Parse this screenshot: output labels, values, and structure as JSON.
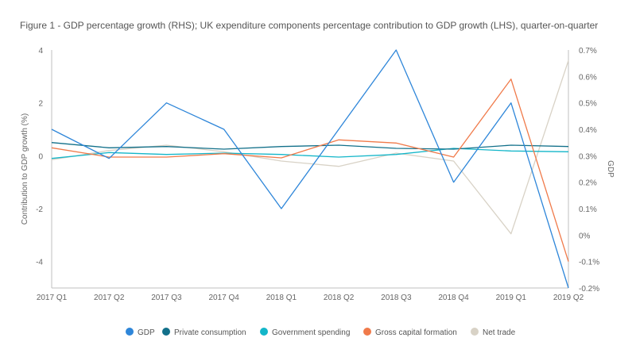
{
  "chart_data": {
    "type": "line",
    "title": "Figure 1 - GDP percentage growth (RHS); UK expenditure components percentage contribution to GDP growth (LHS), quarter-on-quarter",
    "xlabel": "",
    "ylabel_left": "Contribution to GDP growth (%)",
    "ylabel_right": "GDP",
    "categories": [
      "2017 Q1",
      "2017 Q2",
      "2017 Q3",
      "2017 Q4",
      "2018 Q1",
      "2018 Q2",
      "2018 Q3",
      "2018 Q4",
      "2019 Q1",
      "2019 Q2"
    ],
    "ylim_left": [
      -5,
      4
    ],
    "yticks_left": [
      "4",
      "2",
      "0",
      "-2",
      "-4"
    ],
    "ylim_right": [
      -0.2,
      0.7
    ],
    "yticks_right": [
      "0.7%",
      "0.6%",
      "0.5%",
      "0.4%",
      "0.3%",
      "0.2%",
      "0.1%",
      "0%",
      "-0.1%",
      "-0.2%"
    ],
    "grid": false,
    "legend_position": "bottom",
    "series": [
      {
        "name": "GDP",
        "axis": "right",
        "color": "#2e86d9",
        "values": [
          0.4,
          0.29,
          0.5,
          0.4,
          0.1,
          0.4,
          0.7,
          0.2,
          0.5,
          -0.2
        ]
      },
      {
        "name": "Private consumption",
        "axis": "left",
        "color": "#12708a",
        "values": [
          0.5,
          0.3,
          0.35,
          0.25,
          0.35,
          0.4,
          0.28,
          0.25,
          0.4,
          0.35
        ]
      },
      {
        "name": "Government spending",
        "axis": "left",
        "color": "#13b6c9",
        "values": [
          -0.1,
          0.12,
          0.05,
          0.1,
          0.05,
          -0.05,
          0.05,
          0.28,
          0.18,
          0.15
        ]
      },
      {
        "name": "Gross capital formation",
        "axis": "left",
        "color": "#f07a4a",
        "values": [
          0.3,
          -0.05,
          -0.05,
          0.08,
          -0.08,
          0.6,
          0.48,
          -0.05,
          2.9,
          -4.0
        ]
      },
      {
        "name": "Net trade",
        "axis": "left",
        "color": "#d8d2c6",
        "values": [
          -0.15,
          0.2,
          0.4,
          0.15,
          -0.2,
          -0.4,
          0.1,
          -0.2,
          -2.95,
          3.6
        ]
      }
    ]
  }
}
